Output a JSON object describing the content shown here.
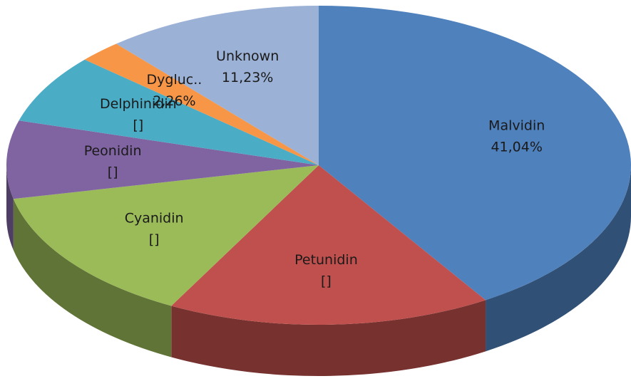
{
  "chart_data": {
    "type": "pie3d",
    "categories": [
      "Malvidin",
      "Petunidin",
      "Cyanidin",
      "Peonidin",
      "Delphinidin",
      "Dygluc..",
      "Unknown"
    ],
    "values": [
      41.04,
      16.8,
      13.8,
      7.9,
      7.0,
      2.26,
      11.23
    ],
    "value_labels": [
      "41,04%",
      "[]",
      "[]",
      "[]",
      "[]",
      "2,26%",
      "11,23%"
    ],
    "colors": [
      "#4f81bd",
      "#c0504d",
      "#9bbb59",
      "#8064a2",
      "#4bacc6",
      "#f79646",
      "#9bb1d6"
    ]
  }
}
